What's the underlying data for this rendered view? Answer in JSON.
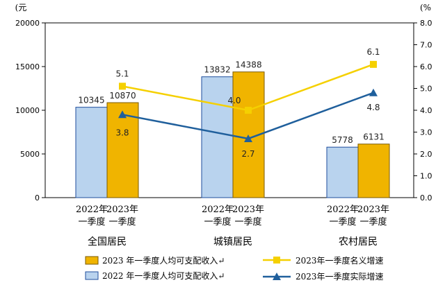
{
  "chart_data": {
    "type": "bar",
    "groups": [
      "全国居民",
      "城镇居民",
      "农村居民"
    ],
    "categories": [
      [
        "2022年",
        "一季度"
      ],
      [
        "2023年",
        "一季度"
      ]
    ],
    "left_unit": "(元",
    "right_unit": "(%",
    "ylim_left": [
      0,
      20000
    ],
    "yticks_left": [
      0,
      5000,
      10000,
      15000,
      20000
    ],
    "ylim_right": [
      0.0,
      8.0
    ],
    "yticks_right": [
      "0.0",
      "1.0",
      "2.0",
      "3.0",
      "4.0",
      "5.0",
      "6.0",
      "7.0",
      "8.0"
    ],
    "bar_series": [
      {
        "name": "2022 年一季度人均可支配收入↵",
        "color": "#b9d3ee",
        "stroke": "#1f4e9c",
        "values": [
          10345,
          13832,
          5778
        ]
      },
      {
        "name": "2023 年一季度人均可支配收入↵",
        "color": "#f0b400",
        "stroke": "#7a5a00",
        "values": [
          10870,
          14388,
          6131
        ]
      }
    ],
    "line_series": [
      {
        "name": "2023年一季度名义增速",
        "color": "#f5d000",
        "marker": "square",
        "values": [
          5.1,
          4.0,
          6.1
        ],
        "labels": [
          "5.1",
          "4.0",
          "6.1"
        ]
      },
      {
        "name": "2023年一季度实际增速",
        "color": "#1f5f9c",
        "marker": "triangle",
        "values": [
          3.8,
          2.7,
          4.8
        ],
        "labels": [
          "3.8",
          "2.7",
          "4.8"
        ]
      }
    ],
    "legend_position": "bottom",
    "grid": false
  }
}
